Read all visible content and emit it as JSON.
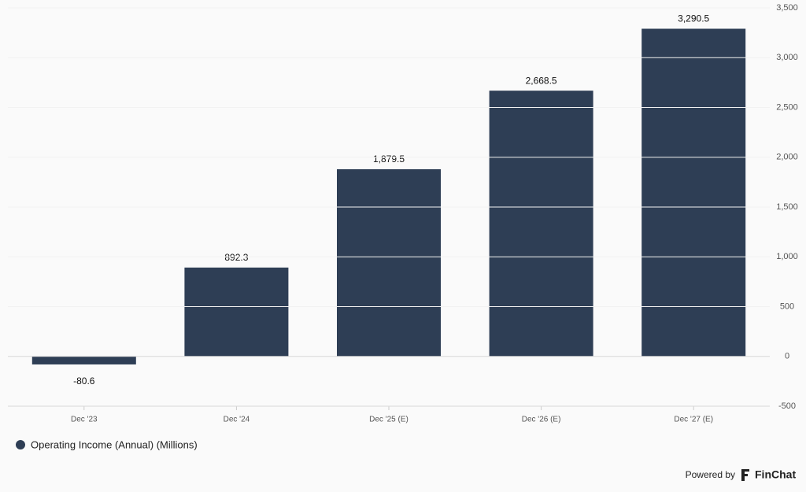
{
  "chart_data": {
    "type": "bar",
    "categories": [
      "Dec '23",
      "Dec '24",
      "Dec '25 (E)",
      "Dec '26 (E)",
      "Dec '27 (E)"
    ],
    "series": [
      {
        "name": "Operating Income (Annual) (Millions)",
        "color": "#2e3e55",
        "values": [
          -80.6,
          892.3,
          1879.5,
          2668.5,
          3290.5
        ],
        "value_labels": [
          "-80.6",
          "892.3",
          "1,879.5",
          "2,668.5",
          "3,290.5"
        ]
      }
    ],
    "ylim": [
      -500,
      3500
    ],
    "yticks": [
      -500,
      0,
      500,
      {
        "value": 1000,
        "label": "1,000"
      },
      {
        "value": 1500,
        "label": "1,500"
      },
      {
        "value": 2000,
        "label": "2,000"
      },
      {
        "value": 2500,
        "label": "2,500"
      },
      {
        "value": 3000,
        "label": "3,000"
      },
      {
        "value": 3500,
        "label": "3,500"
      }
    ],
    "grid": true
  },
  "footer": {
    "powered_by": "Powered by",
    "brand": "FinChat"
  }
}
